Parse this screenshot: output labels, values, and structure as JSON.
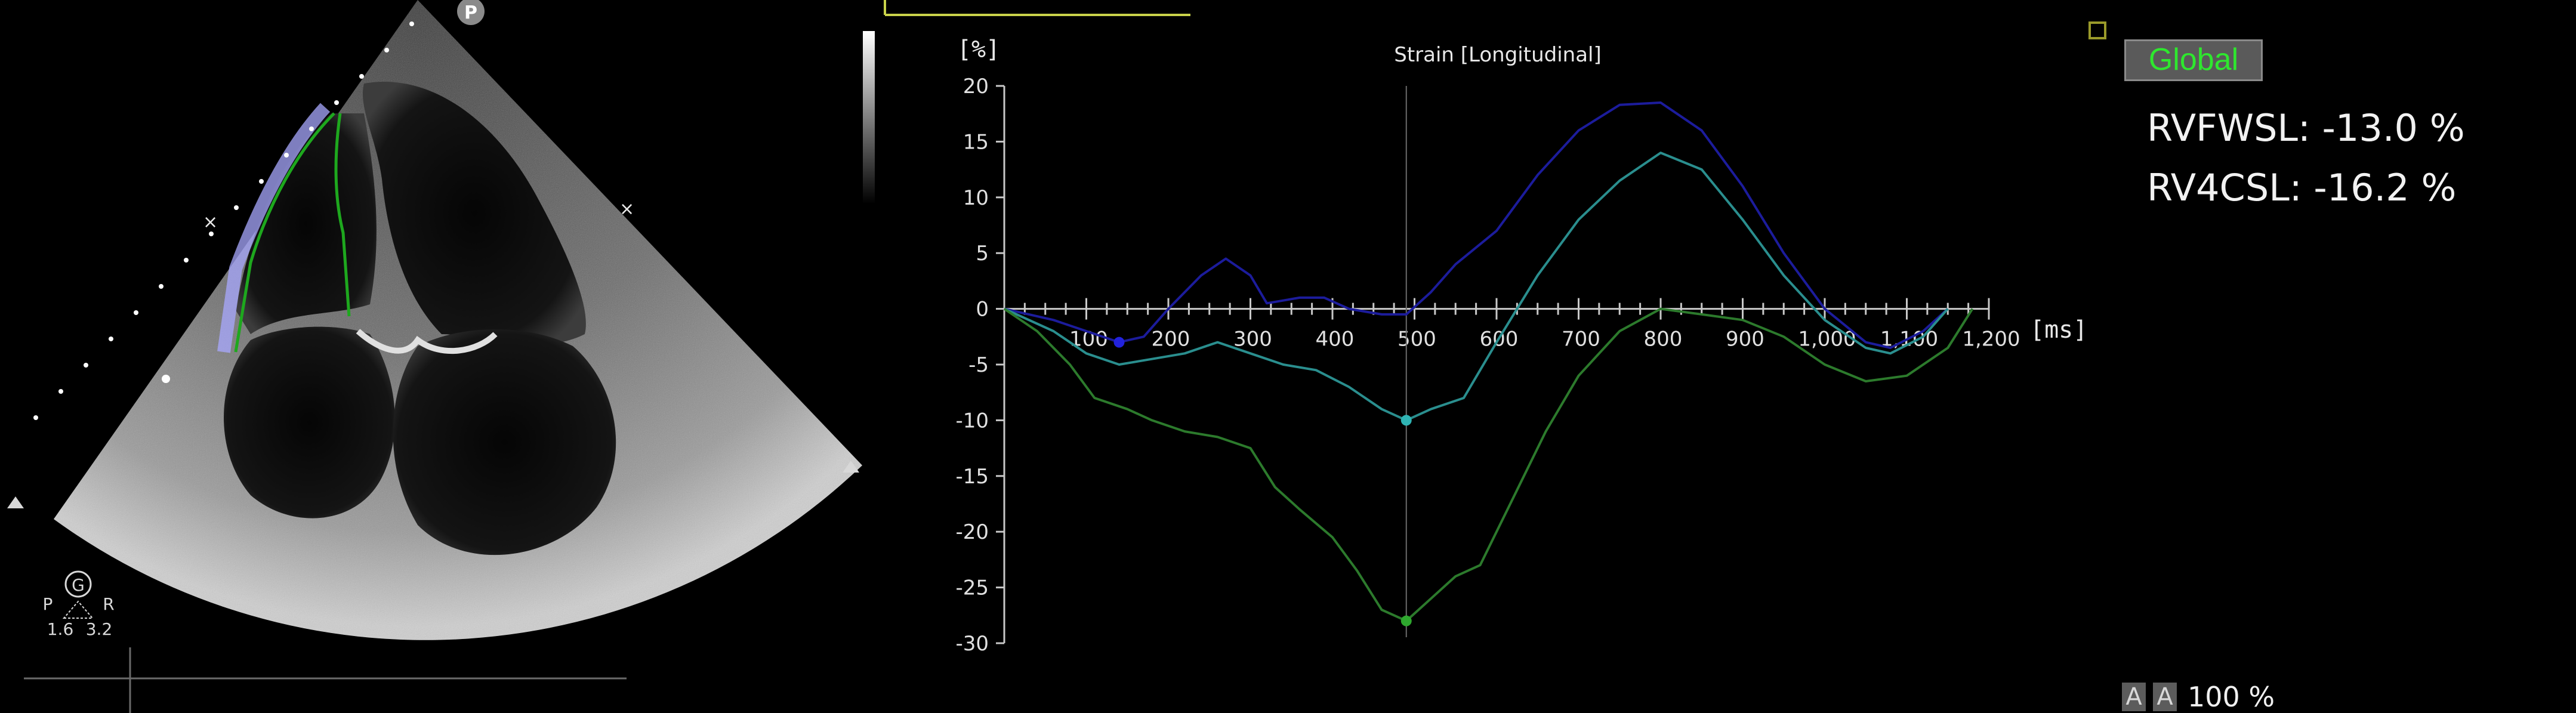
{
  "echo": {
    "top_marker": "P",
    "probe_letter": "G",
    "probe_left": "P",
    "probe_right": "R",
    "scale_left": "1.6",
    "scale_right": "3.2"
  },
  "colors": {
    "series_1": "#1c1c9c",
    "series_2": "#2a8e8e",
    "series_3": "#2c7a2c",
    "axis": "#c8c8c8",
    "global_text": "#2ee82e"
  },
  "chart_data": {
    "type": "line",
    "title": "Strain [Longitudinal]",
    "ylabel": "[%]",
    "xlabel": "[ms]",
    "xlim": [
      0,
      1200
    ],
    "ylim": [
      -30,
      20
    ],
    "x_ticks": [
      100,
      200,
      300,
      400,
      500,
      600,
      700,
      800,
      900,
      1000,
      1100,
      1200
    ],
    "x_tick_labels": [
      "100",
      "200",
      "300",
      "400",
      "500",
      "600",
      "700",
      "800",
      "900",
      "1,000",
      "1,100",
      "1,200"
    ],
    "y_ticks": [
      20,
      15,
      10,
      5,
      0,
      -5,
      -10,
      -15,
      -20,
      -25,
      -30
    ],
    "cursor_x": 490,
    "grid": false,
    "series": [
      {
        "color": "#1c1c9c",
        "marker": {
          "x": 140,
          "y": -3
        },
        "points": [
          [
            0,
            0
          ],
          [
            60,
            -1
          ],
          [
            100,
            -2
          ],
          [
            140,
            -3
          ],
          [
            170,
            -2.5
          ],
          [
            200,
            0
          ],
          [
            240,
            3
          ],
          [
            270,
            4.5
          ],
          [
            300,
            3
          ],
          [
            320,
            0.5
          ],
          [
            360,
            1
          ],
          [
            390,
            1
          ],
          [
            420,
            0
          ],
          [
            460,
            -0.5
          ],
          [
            490,
            -0.5
          ],
          [
            520,
            1.5
          ],
          [
            550,
            4
          ],
          [
            600,
            7
          ],
          [
            650,
            12
          ],
          [
            700,
            16
          ],
          [
            750,
            18.3
          ],
          [
            800,
            18.5
          ],
          [
            850,
            16
          ],
          [
            900,
            11
          ],
          [
            950,
            5
          ],
          [
            1000,
            0
          ],
          [
            1050,
            -3
          ],
          [
            1080,
            -3.5
          ],
          [
            1120,
            -2
          ],
          [
            1150,
            0
          ]
        ]
      },
      {
        "color": "#2a8e8e",
        "marker": {
          "x": 490,
          "y": -10
        },
        "points": [
          [
            0,
            0
          ],
          [
            60,
            -2
          ],
          [
            100,
            -4
          ],
          [
            140,
            -5
          ],
          [
            180,
            -4.5
          ],
          [
            220,
            -4
          ],
          [
            260,
            -3
          ],
          [
            300,
            -4
          ],
          [
            340,
            -5
          ],
          [
            380,
            -5.5
          ],
          [
            420,
            -7
          ],
          [
            460,
            -9
          ],
          [
            490,
            -10
          ],
          [
            520,
            -9
          ],
          [
            560,
            -8
          ],
          [
            600,
            -3
          ],
          [
            650,
            3
          ],
          [
            700,
            8
          ],
          [
            750,
            11.5
          ],
          [
            800,
            14
          ],
          [
            850,
            12.5
          ],
          [
            900,
            8
          ],
          [
            950,
            3
          ],
          [
            1000,
            -1
          ],
          [
            1050,
            -3.5
          ],
          [
            1080,
            -4
          ],
          [
            1120,
            -2.5
          ],
          [
            1150,
            0
          ]
        ]
      },
      {
        "color": "#2c7a2c",
        "marker": {
          "x": 490,
          "y": -28
        },
        "points": [
          [
            0,
            0
          ],
          [
            40,
            -2
          ],
          [
            80,
            -5
          ],
          [
            110,
            -8
          ],
          [
            150,
            -9
          ],
          [
            180,
            -10
          ],
          [
            220,
            -11
          ],
          [
            260,
            -11.5
          ],
          [
            300,
            -12.5
          ],
          [
            330,
            -16
          ],
          [
            360,
            -18
          ],
          [
            400,
            -20.5
          ],
          [
            430,
            -23.5
          ],
          [
            460,
            -27
          ],
          [
            490,
            -28
          ],
          [
            520,
            -26
          ],
          [
            550,
            -24
          ],
          [
            580,
            -23
          ],
          [
            620,
            -17
          ],
          [
            660,
            -11
          ],
          [
            700,
            -6
          ],
          [
            750,
            -2
          ],
          [
            800,
            0
          ],
          [
            850,
            -0.5
          ],
          [
            900,
            -1
          ],
          [
            950,
            -2.5
          ],
          [
            1000,
            -5
          ],
          [
            1050,
            -6.5
          ],
          [
            1100,
            -6
          ],
          [
            1150,
            -3.5
          ],
          [
            1180,
            0
          ]
        ]
      }
    ]
  },
  "panel": {
    "global_label": "Global",
    "metrics": [
      {
        "label": "RVFWSL: -13.0 %"
      },
      {
        "label": "RV4CSL: -16.2 %"
      }
    ]
  },
  "zoom": {
    "btn1": "A",
    "btn2": "A",
    "value": "100 %"
  }
}
